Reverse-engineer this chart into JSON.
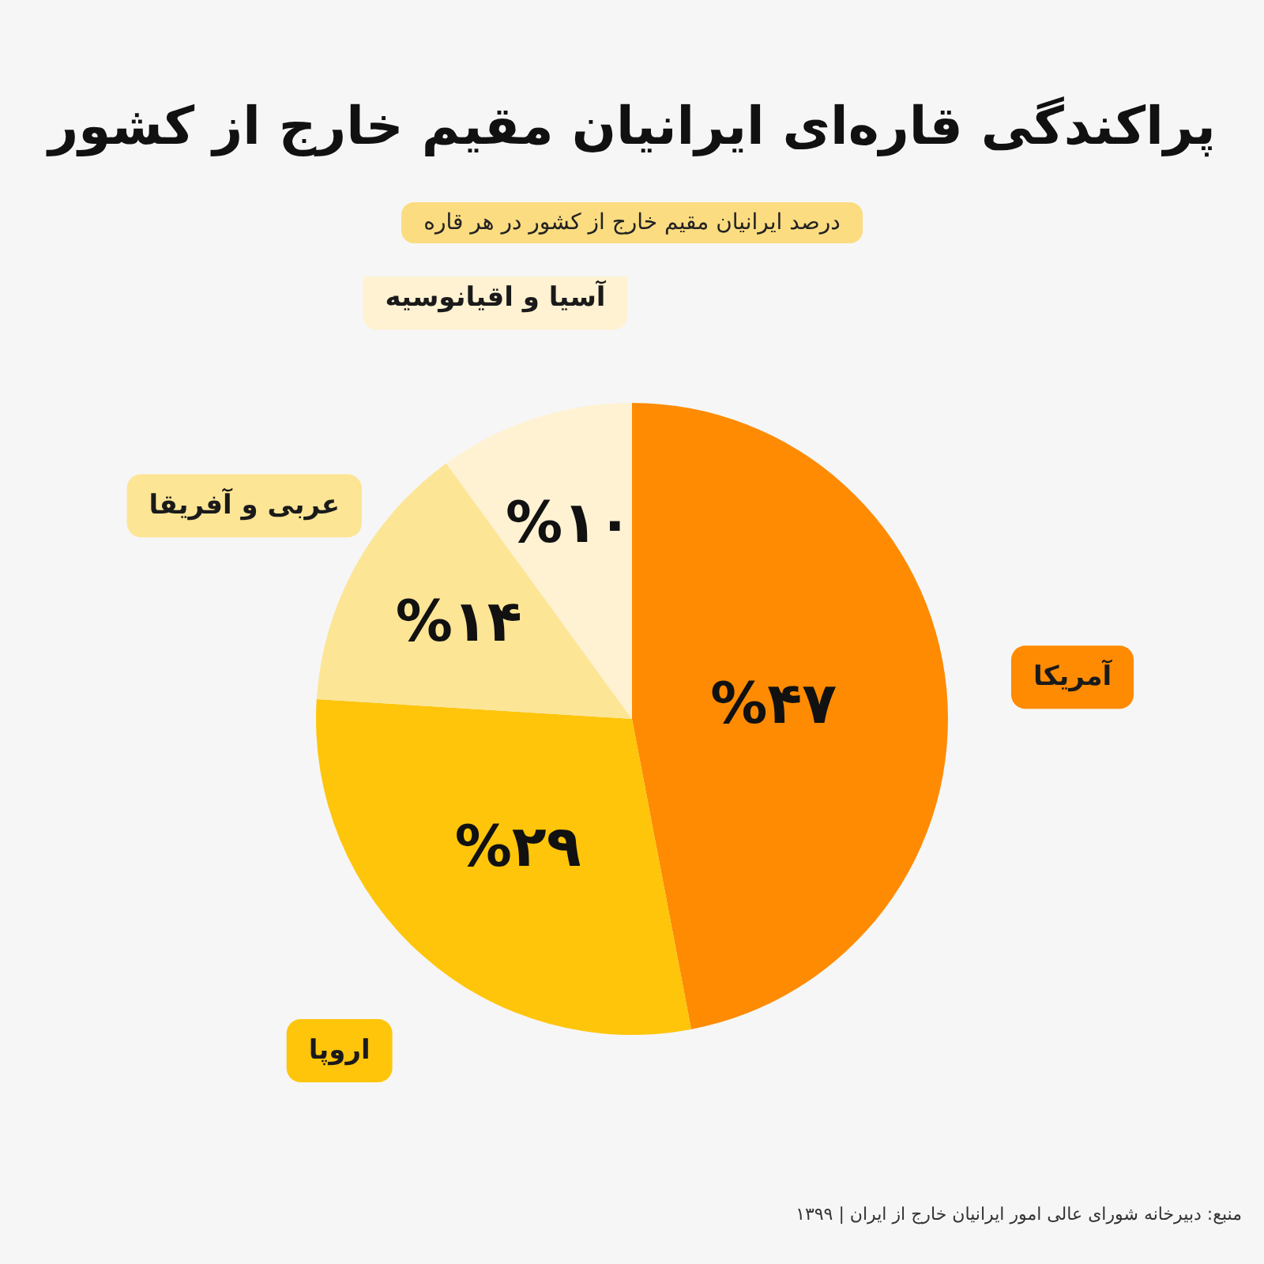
{
  "chart_data": {
    "type": "pie",
    "title": "پراکندگی قاره‌ای ایرانیان مقیم خارج از کشور",
    "subtitle": "درصد ایرانیان مقیم خارج از کشور در هر قاره",
    "categories": [
      "آمریکا",
      "اروپا",
      "عربی و آفریقا",
      "آسیا و اقیانوسیه"
    ],
    "values": [
      47,
      29,
      14,
      10
    ],
    "colors": [
      "#fe8b02",
      "#fec50b",
      "#fde596",
      "#fef2d3"
    ],
    "value_labels": [
      "%۴۷",
      "%۲۹",
      "%۱۴",
      "%۱۰"
    ],
    "annotations": [
      "منبع: دبیرخانه شورای عالی امور ایرانیان خارج از ایران | ۱۳۹۹"
    ]
  }
}
